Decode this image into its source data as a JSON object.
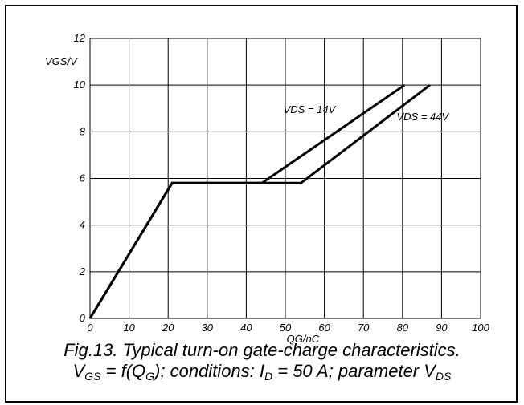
{
  "chart_data": {
    "type": "line",
    "xlabel": "QG/nC",
    "ylabel": "VGS/V",
    "xlim": [
      0,
      100
    ],
    "ylim": [
      0,
      12
    ],
    "xticks": [
      "0",
      "10",
      "20",
      "30",
      "40",
      "50",
      "60",
      "70",
      "80",
      "90",
      "100"
    ],
    "yticks": [
      "0",
      "2",
      "4",
      "6",
      "8",
      "10",
      "12"
    ],
    "grid": true,
    "series": [
      {
        "name": "VDS = 14V",
        "x": [
          0,
          21,
          44,
          80.5
        ],
        "y": [
          0,
          5.8,
          5.8,
          10
        ]
      },
      {
        "name": "VDS = 44V",
        "x": [
          0,
          21,
          54,
          87
        ],
        "y": [
          0,
          5.8,
          5.8,
          10
        ]
      }
    ],
    "annotations": [
      {
        "text": "VDS = 14V",
        "x": 49.5,
        "y": 8.8
      },
      {
        "text": "VDS = 44V",
        "x": 78.5,
        "y": 8.5
      }
    ]
  },
  "caption": {
    "line1": "Fig.13.  Typical turn-on gate-charge characteristics.",
    "l2_vgs_main": "V",
    "l2_vgs_sub": "GS",
    "l2_mid1": " = f(Q",
    "l2_qg_sub": "G",
    "l2_mid2": "); conditions: I",
    "l2_id_sub": "D",
    "l2_mid3": " = 50 A; parameter V",
    "l2_vds_sub": "DS"
  }
}
